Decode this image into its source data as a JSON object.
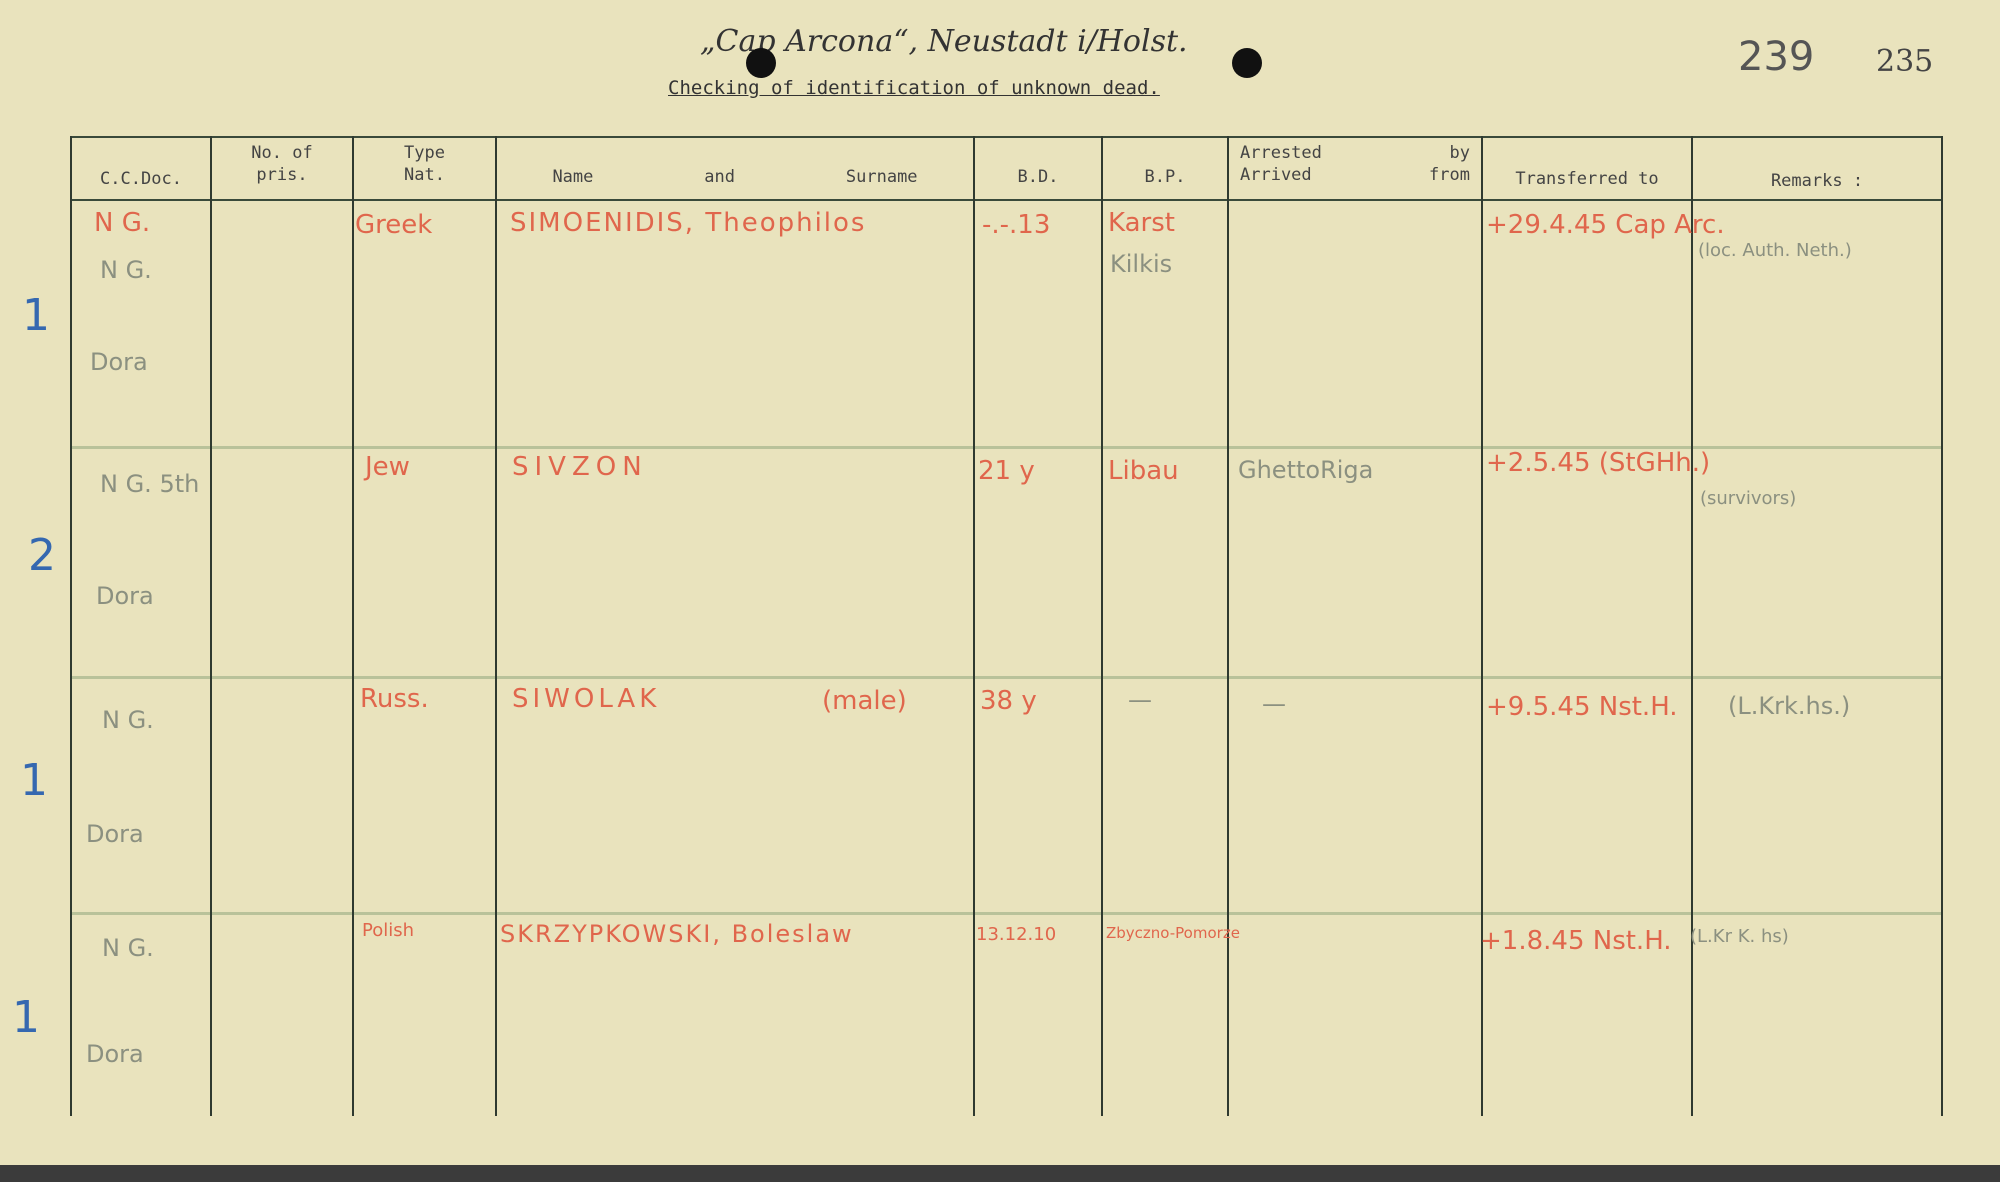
{
  "header": {
    "handwritten_title": "„Cap Arcona“, Neustadt i/Holst.",
    "title": "Checking of identification of unknown dead.",
    "page_number_stamped": "239",
    "page_number_handwritten": "235"
  },
  "columns": [
    "C.C.Doc.",
    "No. of pris.",
    "Type Nat.",
    "Name and Surname",
    "B.D.",
    "B.P.",
    "Arrested by Arrived from",
    "Transferred to",
    "Remarks :"
  ],
  "columns_detail": {
    "no_of_pris": [
      "No. of",
      "pris."
    ],
    "type_nat": [
      "Type",
      "Nat."
    ],
    "name": [
      "Name",
      "and",
      "Surname"
    ],
    "arrested": [
      "Arrested",
      "by",
      "Arrived",
      "from"
    ]
  },
  "rows": [
    {
      "margin": "1",
      "doc": "N G.",
      "doc2": "N G.",
      "doc3": "Dora",
      "nat": "Greek",
      "name": "SIMOENIDIS, Theophilos",
      "bd": "-.-.13",
      "bp": "Karst",
      "bp2": "Kilkis",
      "arrested": "",
      "transferred": "+29.4.45 Cap Arc.",
      "remarks": "(loc. Auth. Neth.)"
    },
    {
      "margin": "2",
      "doc": "N G. 5th",
      "doc3": "Dora",
      "nat": "Jew",
      "name": "SIVZON",
      "bd": "21 y",
      "bp": "Libau",
      "arrested": "GhettoRiga",
      "transferred": "+2.5.45 (StGHh.)",
      "remarks": "(survivors)"
    },
    {
      "margin": "1",
      "doc": "N G.",
      "doc3": "Dora",
      "nat": "Russ.",
      "name": "SIWOLAK",
      "name_note": "(male)",
      "bd": "38 y",
      "bp": "—",
      "arrested": "—",
      "transferred": "+9.5.45 Nst.H.",
      "remarks": "(L.Krk.hs.)"
    },
    {
      "margin": "1",
      "doc": "N G.",
      "doc3": "Dora",
      "nat": "Polish",
      "name": "SKRZYPKOWSKI, Boleslaw",
      "bd": "13.12.10",
      "bp": "Zbyczno-Pomorze",
      "arrested": "",
      "transferred": "+1.8.45 Nst.H.",
      "remarks": "(L.Kr K. hs)"
    }
  ],
  "colors": {
    "paper": "#e9e3bd",
    "red_ink": "#e0664c",
    "pencil": "#8b9080",
    "blue_pencil": "#3568b0"
  }
}
